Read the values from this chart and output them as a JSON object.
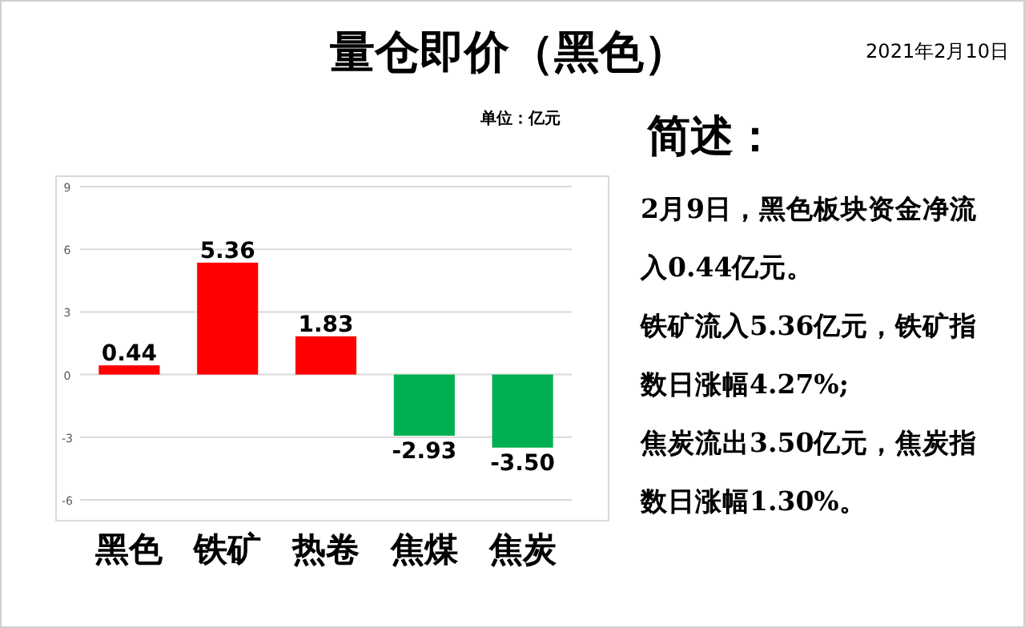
{
  "chart_data": [
    {
      "type": "bar",
      "title": "量仓即价（黑色）",
      "subtitle": "单位：亿元",
      "annotations": [
        "2021年2月10日"
      ],
      "categories": [
        "黑色",
        "铁矿",
        "热卷",
        "焦煤",
        "焦炭"
      ],
      "values": [
        0.44,
        5.36,
        1.83,
        -2.93,
        -3.5
      ],
      "colors": [
        "#ff0000",
        "#ff0000",
        "#ff0000",
        "#00b050",
        "#00b050"
      ],
      "value_labels": [
        "0.44",
        "5.36",
        "1.83",
        "-2.93",
        "-3.50"
      ],
      "ylim": [
        -7,
        9.5
      ],
      "yticks": [
        -6,
        -3,
        0,
        3,
        6,
        9
      ],
      "grid": "y"
    },
    {
      "type": "other",
      "title": "简述：",
      "annotations": [
        "2月9日，黑色板块资金净流入0.44亿元。",
        "铁矿流入5.36亿元，铁矿指数日涨幅4.27%;",
        "焦炭流出3.50亿元，焦炭指数日涨幅1.30%。"
      ]
    }
  ]
}
